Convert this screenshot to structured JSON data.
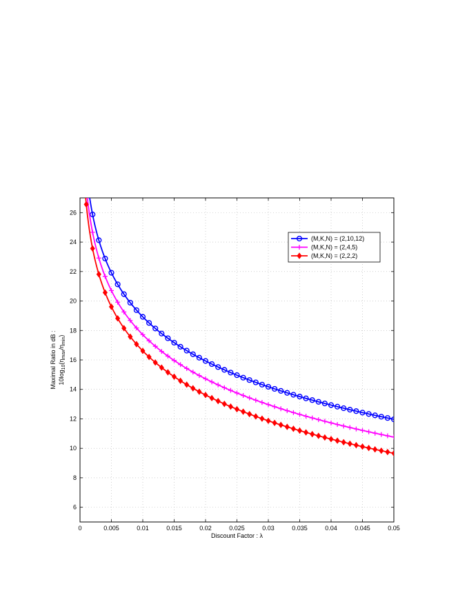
{
  "chart_data": {
    "type": "line",
    "title": "",
    "xlabel": "Discount Factor : λ",
    "ylabel_line1": "Maximal Ratio in dB :",
    "ylabel_line2": {
      "a": "10log",
      "a_sub": "10",
      "b": "(η",
      "b_sub": "max",
      "c": "/η",
      "c_sub": "min",
      "d": ")"
    },
    "xlim": [
      0,
      0.05
    ],
    "ylim": [
      5,
      27
    ],
    "grid": true,
    "legend_position": "upper-right",
    "x_ticks": [
      0,
      0.005,
      0.01,
      0.015,
      0.02,
      0.025,
      0.03,
      0.035,
      0.04,
      0.045,
      0.05
    ],
    "x_tick_labels": [
      "0",
      "0.005",
      "0.01",
      "0.015",
      "0.02",
      "0.025",
      "0.03",
      "0.035",
      "0.04",
      "0.045",
      "0.05"
    ],
    "y_ticks": [
      6,
      8,
      10,
      12,
      14,
      16,
      18,
      20,
      22,
      24,
      26
    ],
    "y_tick_labels": [
      "6",
      "8",
      "10",
      "12",
      "14",
      "16",
      "18",
      "20",
      "22",
      "24",
      "26"
    ],
    "model": "y = a - b*ln(x) fitted per series",
    "series": [
      {
        "name": "(M,K,N) = (2,10,12)",
        "color": "#0000ff",
        "marker": "circle",
        "a": -0.97,
        "b": 4.32
      },
      {
        "name": "(M,K,N) = (2,4,5)",
        "color": "#ff00ff",
        "marker": "plus",
        "a": -2.18,
        "b": 4.32
      },
      {
        "name": "(M,K,N) = (2,2,2)",
        "color": "#ff0000",
        "marker": "diamond",
        "a": -3.28,
        "b": 4.32
      }
    ],
    "x_samples_start": 0.001,
    "x_samples_step": 0.001,
    "x_samples_end": 0.05
  }
}
